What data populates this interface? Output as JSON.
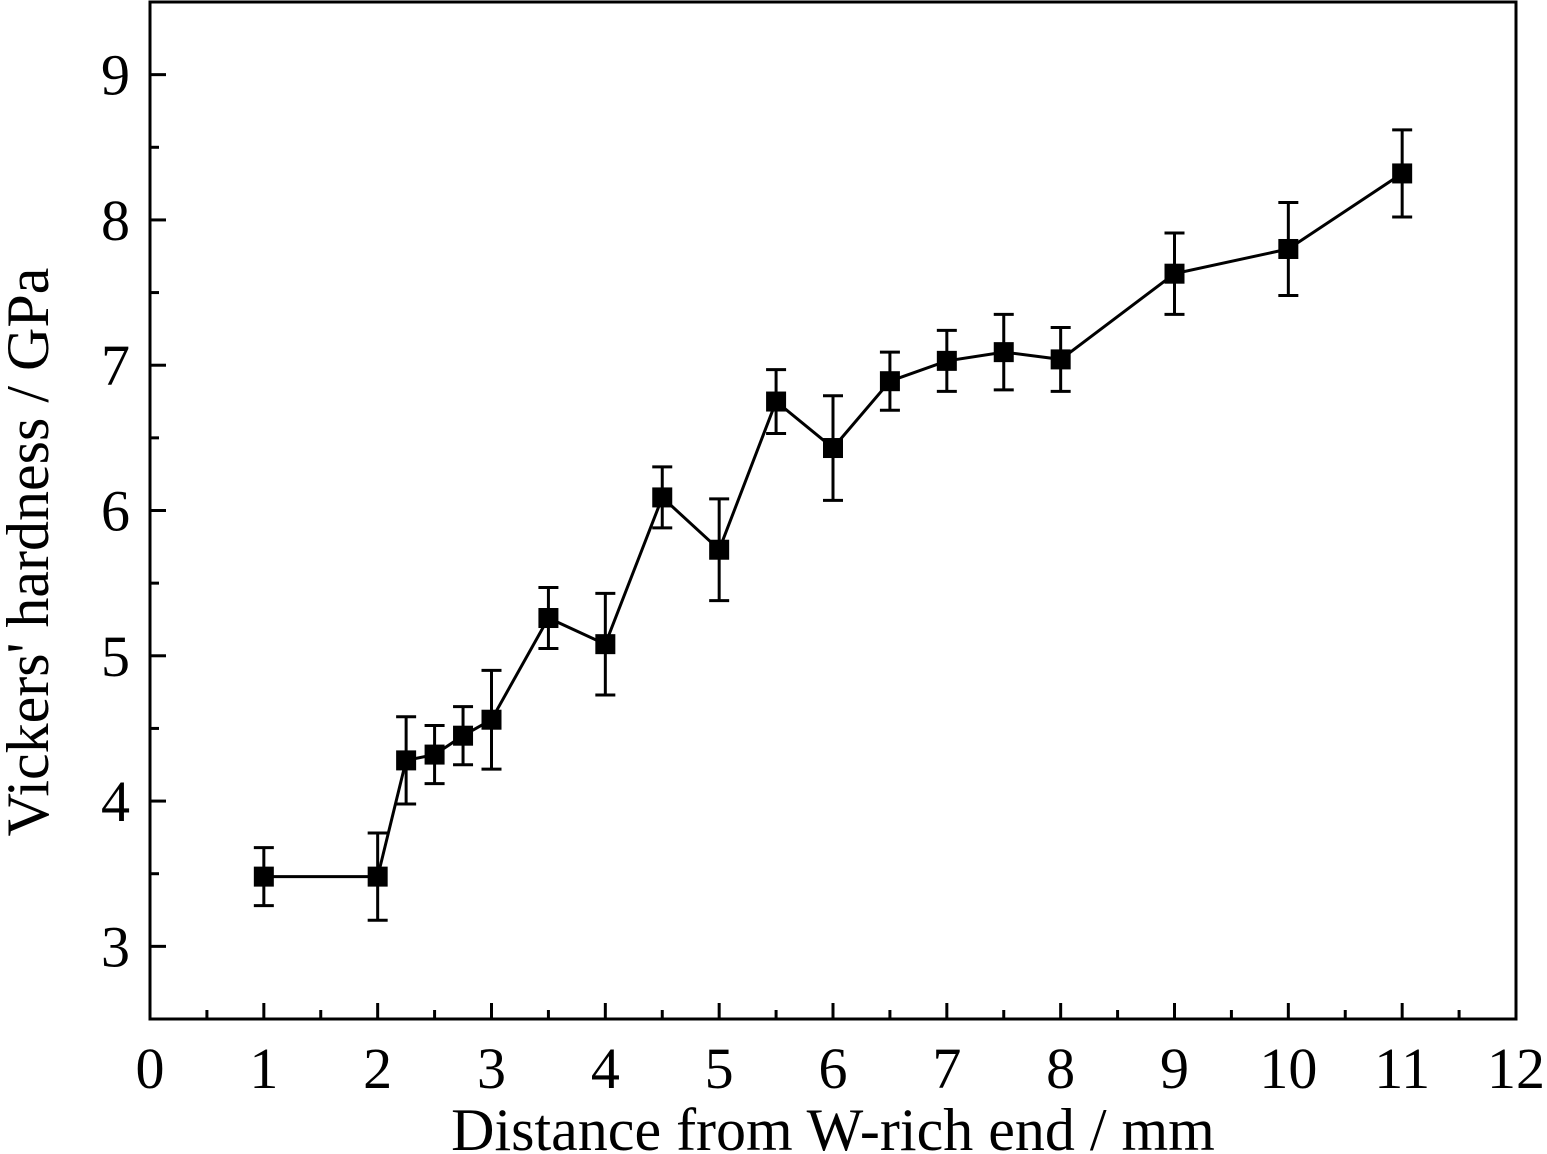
{
  "chart_data": {
    "type": "scatter",
    "title": "",
    "xlabel": "Distance from W-rich end / mm",
    "ylabel": "Vickers' hardness / GPa",
    "xlim": [
      0,
      12
    ],
    "ylim": [
      2.5,
      9.5
    ],
    "x_ticks": [
      "0",
      "1",
      "2",
      "3",
      "4",
      "5",
      "6",
      "7",
      "8",
      "9",
      "10",
      "11",
      "12"
    ],
    "y_ticks": [
      "3",
      "4",
      "5",
      "6",
      "7",
      "8",
      "9"
    ],
    "grid": false,
    "legend": "none",
    "marker": "square",
    "line": "connected",
    "error_bars": true,
    "series": [
      {
        "points": [
          {
            "x": 1.0,
            "y": 3.48,
            "err": 0.2
          },
          {
            "x": 2.0,
            "y": 3.48,
            "err": 0.3
          },
          {
            "x": 2.25,
            "y": 4.28,
            "err": 0.3
          },
          {
            "x": 2.5,
            "y": 4.32,
            "err": 0.2
          },
          {
            "x": 2.75,
            "y": 4.45,
            "err": 0.2
          },
          {
            "x": 3.0,
            "y": 4.56,
            "err": 0.34
          },
          {
            "x": 3.5,
            "y": 5.26,
            "err": 0.21
          },
          {
            "x": 4.0,
            "y": 5.08,
            "err": 0.35
          },
          {
            "x": 4.5,
            "y": 6.09,
            "err": 0.21
          },
          {
            "x": 5.0,
            "y": 5.73,
            "err": 0.35
          },
          {
            "x": 5.5,
            "y": 6.75,
            "err": 0.22
          },
          {
            "x": 6.0,
            "y": 6.43,
            "err": 0.36
          },
          {
            "x": 6.5,
            "y": 6.89,
            "err": 0.2
          },
          {
            "x": 7.0,
            "y": 7.03,
            "err": 0.21
          },
          {
            "x": 7.5,
            "y": 7.09,
            "err": 0.26
          },
          {
            "x": 8.0,
            "y": 7.04,
            "err": 0.22
          },
          {
            "x": 9.0,
            "y": 7.63,
            "err": 0.28
          },
          {
            "x": 10.0,
            "y": 7.8,
            "err": 0.32
          },
          {
            "x": 11.0,
            "y": 8.32,
            "err": 0.3
          }
        ]
      }
    ]
  }
}
